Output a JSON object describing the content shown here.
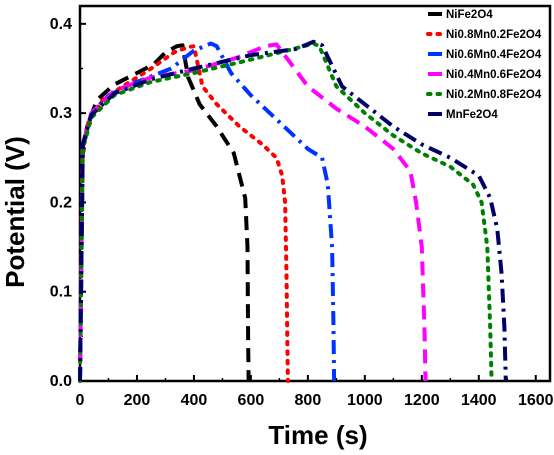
{
  "chart_data": {
    "type": "line",
    "xlabel": "Time (s)",
    "ylabel": "Potential (V)",
    "xlim": [
      0,
      1650
    ],
    "ylim": [
      0,
      0.42
    ],
    "xticks": [
      "0",
      "200",
      "400",
      "600",
      "800",
      "1000",
      "1200",
      "1400",
      "1600"
    ],
    "yticks": [
      "0.0",
      "0.1",
      "0.2",
      "0.3",
      "0.4"
    ],
    "legend_position": "top-right",
    "series": [
      {
        "name": "NiFe2O4",
        "color": "#000000",
        "style": "dash",
        "points": [
          [
            0,
            0
          ],
          [
            8,
            0.25
          ],
          [
            25,
            0.285
          ],
          [
            60,
            0.315
          ],
          [
            120,
            0.332
          ],
          [
            200,
            0.345
          ],
          [
            260,
            0.355
          ],
          [
            300,
            0.368
          ],
          [
            340,
            0.375
          ],
          [
            360,
            0.376
          ],
          [
            380,
            0.34
          ],
          [
            420,
            0.31
          ],
          [
            480,
            0.285
          ],
          [
            540,
            0.255
          ],
          [
            580,
            0.205
          ],
          [
            588,
            0.15
          ],
          [
            590,
            0.05
          ],
          [
            592,
            0
          ]
        ]
      },
      {
        "name": "Ni0.8Mn0.2Fe2O4",
        "color": "#ff0000",
        "style": "dot",
        "points": [
          [
            0,
            0
          ],
          [
            8,
            0.26
          ],
          [
            30,
            0.29
          ],
          [
            80,
            0.315
          ],
          [
            150,
            0.33
          ],
          [
            250,
            0.35
          ],
          [
            330,
            0.368
          ],
          [
            380,
            0.374
          ],
          [
            400,
            0.375
          ],
          [
            430,
            0.33
          ],
          [
            480,
            0.31
          ],
          [
            560,
            0.285
          ],
          [
            640,
            0.265
          ],
          [
            690,
            0.25
          ],
          [
            710,
            0.23
          ],
          [
            720,
            0.2
          ],
          [
            725,
            0.12
          ],
          [
            728,
            0.04
          ],
          [
            730,
            0
          ]
        ]
      },
      {
        "name": "Ni0.6Mn0.4Fe2O4",
        "color": "#0033ff",
        "style": "dashdot",
        "points": [
          [
            0,
            0
          ],
          [
            10,
            0.265
          ],
          [
            40,
            0.3
          ],
          [
            100,
            0.32
          ],
          [
            200,
            0.335
          ],
          [
            320,
            0.35
          ],
          [
            400,
            0.37
          ],
          [
            460,
            0.378
          ],
          [
            480,
            0.375
          ],
          [
            530,
            0.345
          ],
          [
            600,
            0.32
          ],
          [
            700,
            0.29
          ],
          [
            800,
            0.26
          ],
          [
            850,
            0.25
          ],
          [
            870,
            0.22
          ],
          [
            885,
            0.15
          ],
          [
            890,
            0.06
          ],
          [
            892,
            0
          ]
        ]
      },
      {
        "name": "Ni0.4Mn0.6Fe2O4",
        "color": "#ff00ff",
        "style": "dash",
        "points": [
          [
            0,
            0
          ],
          [
            10,
            0.265
          ],
          [
            40,
            0.3
          ],
          [
            120,
            0.325
          ],
          [
            250,
            0.34
          ],
          [
            400,
            0.348
          ],
          [
            550,
            0.362
          ],
          [
            650,
            0.375
          ],
          [
            690,
            0.377
          ],
          [
            730,
            0.36
          ],
          [
            800,
            0.33
          ],
          [
            900,
            0.305
          ],
          [
            1000,
            0.285
          ],
          [
            1100,
            0.26
          ],
          [
            1160,
            0.235
          ],
          [
            1180,
            0.2
          ],
          [
            1200,
            0.15
          ],
          [
            1210,
            0.05
          ],
          [
            1213,
            0
          ]
        ]
      },
      {
        "name": "Ni0.2Mn0.8Fe2O4",
        "color": "#008000",
        "style": "dot",
        "points": [
          [
            0,
            0
          ],
          [
            10,
            0.26
          ],
          [
            40,
            0.295
          ],
          [
            120,
            0.32
          ],
          [
            250,
            0.335
          ],
          [
            400,
            0.345
          ],
          [
            600,
            0.36
          ],
          [
            750,
            0.372
          ],
          [
            820,
            0.378
          ],
          [
            840,
            0.375
          ],
          [
            900,
            0.33
          ],
          [
            1000,
            0.3
          ],
          [
            1100,
            0.275
          ],
          [
            1200,
            0.255
          ],
          [
            1300,
            0.24
          ],
          [
            1380,
            0.22
          ],
          [
            1410,
            0.2
          ],
          [
            1430,
            0.15
          ],
          [
            1440,
            0.06
          ],
          [
            1445,
            0
          ]
        ]
      },
      {
        "name": "MnFe2O4",
        "color": "#000066",
        "style": "dashdot",
        "points": [
          [
            0,
            0
          ],
          [
            10,
            0.265
          ],
          [
            40,
            0.298
          ],
          [
            120,
            0.322
          ],
          [
            250,
            0.338
          ],
          [
            400,
            0.35
          ],
          [
            600,
            0.365
          ],
          [
            760,
            0.372
          ],
          [
            820,
            0.38
          ],
          [
            850,
            0.376
          ],
          [
            920,
            0.33
          ],
          [
            1000,
            0.31
          ],
          [
            1100,
            0.285
          ],
          [
            1200,
            0.265
          ],
          [
            1300,
            0.25
          ],
          [
            1400,
            0.23
          ],
          [
            1440,
            0.205
          ],
          [
            1465,
            0.17
          ],
          [
            1480,
            0.12
          ],
          [
            1490,
            0.06
          ],
          [
            1495,
            0
          ]
        ]
      }
    ]
  }
}
